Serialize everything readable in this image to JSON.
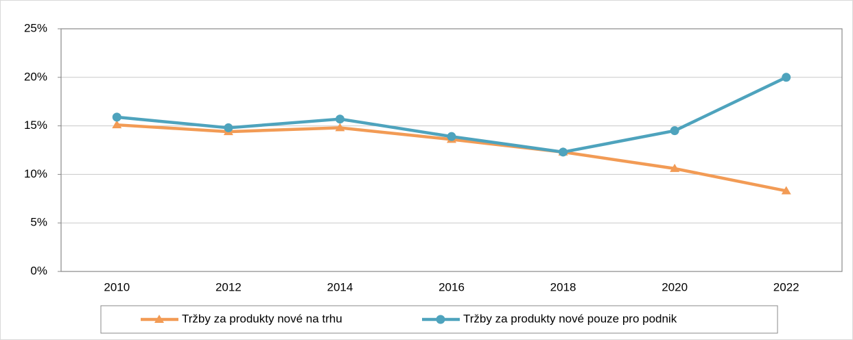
{
  "chart_data": {
    "type": "line",
    "categories": [
      "2010",
      "2012",
      "2014",
      "2016",
      "2018",
      "2020",
      "2022"
    ],
    "series": [
      {
        "name": "Tržby za produkty nové na trhu",
        "color": "#f29b55",
        "marker": "triangle",
        "values": [
          15.1,
          14.4,
          14.8,
          13.6,
          12.3,
          10.6,
          8.3
        ]
      },
      {
        "name": "Tržby za produkty nové pouze pro podnik",
        "color": "#4ea3bd",
        "marker": "circle",
        "values": [
          15.9,
          14.8,
          15.7,
          13.9,
          12.3,
          14.5,
          20.0
        ]
      }
    ],
    "ylim": [
      0,
      25
    ],
    "yticks": [
      {
        "value": 0,
        "label": "0%"
      },
      {
        "value": 5,
        "label": "5%"
      },
      {
        "value": 10,
        "label": "10%"
      },
      {
        "value": 15,
        "label": "15%"
      },
      {
        "value": 20,
        "label": "20%"
      },
      {
        "value": 25,
        "label": "25%"
      }
    ],
    "grid": true,
    "legend": "bottom"
  }
}
